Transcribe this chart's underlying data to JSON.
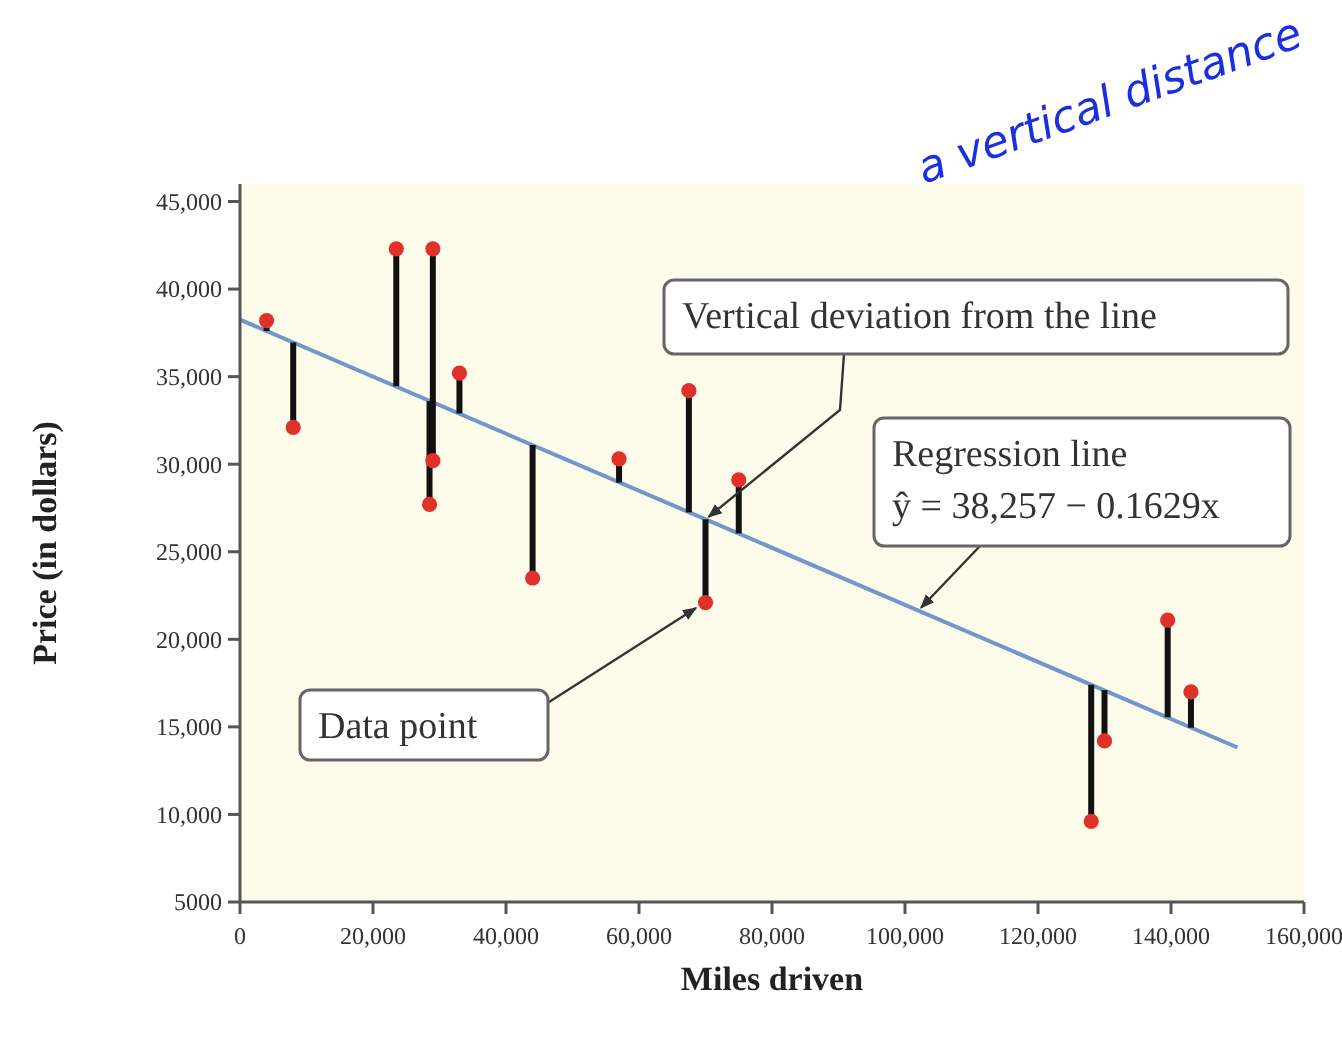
{
  "chart_data": {
    "type": "scatter",
    "xlabel": "Miles driven",
    "ylabel": "Price (in dollars)",
    "xlim": [
      0,
      160000
    ],
    "ylim": [
      5000,
      46000
    ],
    "xticks": [
      0,
      {
        "value": 20000,
        "label": "20,000"
      },
      {
        "value": 40000,
        "label": "40,000"
      },
      {
        "value": 60000,
        "label": "60,000"
      },
      {
        "value": 80000,
        "label": "80,000"
      },
      {
        "value": 100000,
        "label": "100,000"
      },
      {
        "value": 120000,
        "label": "120,000"
      },
      {
        "value": 140000,
        "label": "140,000"
      },
      {
        "value": 160000,
        "label": "160,000"
      }
    ],
    "yticks": [
      5000,
      {
        "value": 10000,
        "label": "10,000"
      },
      {
        "value": 15000,
        "label": "15,000"
      },
      {
        "value": 20000,
        "label": "20,000"
      },
      {
        "value": 25000,
        "label": "25,000"
      },
      {
        "value": 30000,
        "label": "30,000"
      },
      {
        "value": 35000,
        "label": "35,000"
      },
      {
        "value": 40000,
        "label": "40,000"
      },
      {
        "value": 45000,
        "label": "45,000"
      }
    ],
    "grid": false,
    "marker": "circle",
    "series": [
      {
        "color": "#e0302a",
        "x": [
          4000,
          8000,
          23500,
          29000,
          33000,
          29000,
          28500,
          44000,
          57000,
          67500,
          70000,
          75000,
          128000,
          130000,
          139500,
          143000
        ],
        "values": [
          38200,
          32100,
          42300,
          42300,
          35200,
          30200,
          27700,
          23500,
          30300,
          34200,
          22100,
          29100,
          9600,
          14200,
          21100,
          17000
        ],
        "errors": [
          [
            37600,
            38200
          ],
          [
            32100,
            36950
          ],
          [
            34450,
            42300
          ],
          [
            33550,
            42300
          ],
          [
            32900,
            35200
          ],
          [
            30200,
            33550
          ],
          [
            27700,
            33600
          ],
          [
            23500,
            31100
          ],
          [
            28950,
            30300
          ],
          [
            27250,
            34200
          ],
          [
            22100,
            26850
          ],
          [
            26050,
            29100
          ],
          [
            9600,
            17400
          ],
          [
            14200,
            17100
          ],
          [
            15550,
            21100
          ],
          [
            14950,
            17000
          ]
        ]
      },
      {
        "type": "line",
        "color": "#7097c8",
        "line_style": "solid",
        "marker": "none",
        "x": [
          0,
          150000
        ],
        "values": [
          38257,
          13822
        ]
      }
    ],
    "annotations": [
      {
        "text": "Vertical deviation from the line",
        "x": 70000,
        "y": 26850
      },
      "Data point",
      {
        "text": "Regression line\nŷ = 38,257 − 0.1629x",
        "x": 102000,
        "y": 21640
      },
      "a vertical distance"
    ]
  }
}
